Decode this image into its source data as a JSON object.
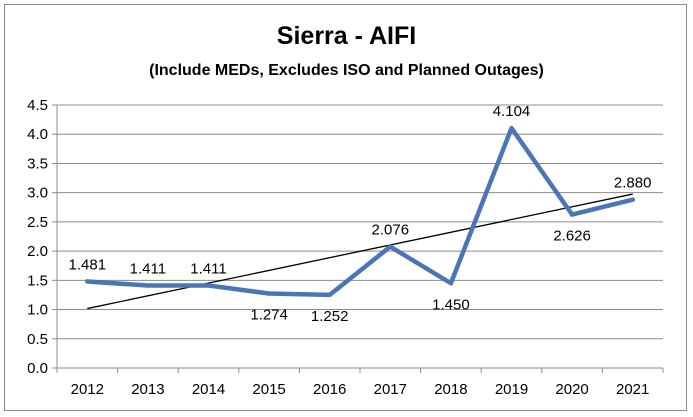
{
  "chart_data": {
    "type": "line",
    "title": "Sierra - AIFI",
    "subtitle": "(Include MEDs, Excludes ISO and Planned Outages)",
    "xlabel": "",
    "ylabel": "",
    "categories": [
      "2012",
      "2013",
      "2014",
      "2015",
      "2016",
      "2017",
      "2018",
      "2019",
      "2020",
      "2021"
    ],
    "series": [
      {
        "values": [
          1.481,
          1.411,
          1.411,
          1.274,
          1.252,
          2.076,
          1.45,
          4.104,
          2.626,
          2.88
        ],
        "labels": [
          "1.481",
          "1.411",
          "1.411",
          "1.274",
          "1.252",
          "2.076",
          "1.450",
          "4.104",
          "2.626",
          "2.880"
        ],
        "color": "#4a76b8"
      }
    ],
    "trendline": {
      "type": "linear",
      "color": "#000000"
    },
    "ylim": [
      0.0,
      4.5
    ],
    "yticks": [
      "0.0",
      "0.5",
      "1.0",
      "1.5",
      "2.0",
      "2.5",
      "3.0",
      "3.5",
      "4.0",
      "4.5"
    ],
    "grid": true,
    "legend": "none"
  }
}
